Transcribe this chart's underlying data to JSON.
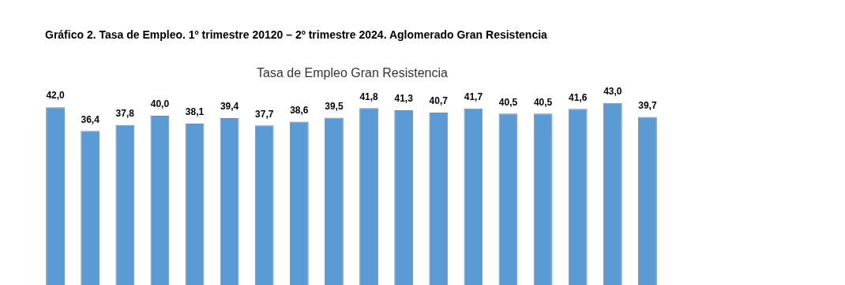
{
  "chart_data": {
    "type": "bar",
    "title": "Gráfico 2. Tasa de Empleo. 1º trimestre 20120 – 2º trimestre 2024. Aglomerado Gran Resistencia",
    "subtitle": "Tasa de Empleo Gran Resistencia",
    "categories": [
      null,
      null,
      null,
      null,
      null,
      null,
      null,
      null,
      null,
      null,
      null,
      null,
      null,
      null,
      null,
      null,
      null,
      null
    ],
    "values": [
      42.0,
      36.4,
      37.8,
      40.0,
      38.1,
      39.4,
      37.7,
      38.6,
      39.5,
      41.8,
      41.3,
      40.7,
      41.7,
      40.5,
      40.5,
      41.6,
      43.0,
      39.7
    ],
    "value_labels": [
      "42,0",
      "36,4",
      "37,8",
      "40,0",
      "38,1",
      "39,4",
      "37,7",
      "38,6",
      "39,5",
      "41,8",
      "41,3",
      "40,7",
      "41,7",
      "40,5",
      "40,5",
      "41,6",
      "43,0",
      "39,7"
    ],
    "color": "#5b9bd5",
    "tick_labels": false
  }
}
